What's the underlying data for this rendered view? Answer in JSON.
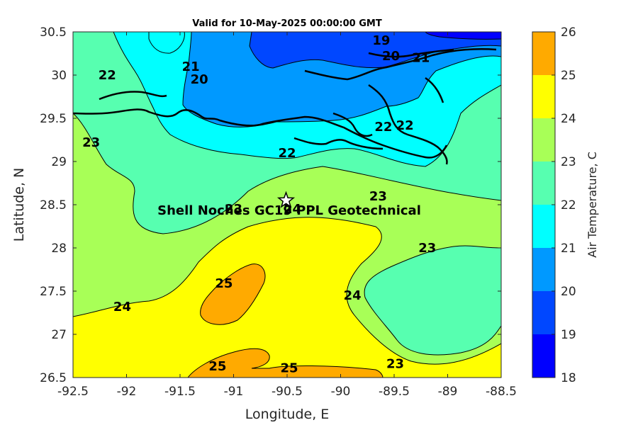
{
  "chart_data": {
    "type": "heatmap",
    "title": "Valid for 10-May-2025 00:00:00 GMT",
    "xlabel": "Longitude, E",
    "ylabel": "Latitude, N",
    "xlim": [
      -92.5,
      -88.5
    ],
    "ylim": [
      26.5,
      30.5
    ],
    "x_ticks": [
      "-92.5",
      "-92",
      "-91.5",
      "-91",
      "-90.5",
      "-90",
      "-89.5",
      "-89",
      "-88.5"
    ],
    "y_ticks": [
      "26.5",
      "27",
      "27.5",
      "28",
      "28.5",
      "29",
      "29.5",
      "30",
      "30.5"
    ],
    "colorbar": {
      "label": "Air Temperature, C",
      "ticks": [
        "18",
        "19",
        "20",
        "21",
        "22",
        "23",
        "24",
        "25",
        "26"
      ],
      "levels": [
        18,
        19,
        20,
        21,
        22,
        23,
        24,
        25,
        26
      ],
      "colors": [
        "#0000ff",
        "#0047ff",
        "#0099ff",
        "#00ffff",
        "#57ffb0",
        "#a8ff57",
        "#ffff00",
        "#ffaa00",
        "#ff5500"
      ]
    },
    "contour_labels": [
      {
        "text": "19",
        "lon": -89.62,
        "lat": 30.4
      },
      {
        "text": "20",
        "lon": -89.53,
        "lat": 30.22
      },
      {
        "text": "21",
        "lon": -89.25,
        "lat": 30.2
      },
      {
        "text": "21",
        "lon": -91.4,
        "lat": 30.1
      },
      {
        "text": "20",
        "lon": -91.32,
        "lat": 29.95
      },
      {
        "text": "22",
        "lon": -92.18,
        "lat": 30.0
      },
      {
        "text": "22",
        "lon": -89.6,
        "lat": 29.4
      },
      {
        "text": "22",
        "lon": -89.4,
        "lat": 29.42
      },
      {
        "text": "22",
        "lon": -90.5,
        "lat": 29.1
      },
      {
        "text": "23",
        "lon": -92.33,
        "lat": 29.22
      },
      {
        "text": "23",
        "lon": -91.0,
        "lat": 28.45
      },
      {
        "text": "23",
        "lon": -89.65,
        "lat": 28.6
      },
      {
        "text": "23",
        "lon": -89.19,
        "lat": 28.0
      },
      {
        "text": "24",
        "lon": -90.45,
        "lat": 28.45
      },
      {
        "text": "24",
        "lon": -89.89,
        "lat": 27.45
      },
      {
        "text": "24",
        "lon": -92.04,
        "lat": 27.32
      },
      {
        "text": "25",
        "lon": -91.09,
        "lat": 27.59
      },
      {
        "text": "25",
        "lon": -91.15,
        "lat": 26.63
      },
      {
        "text": "23",
        "lon": -89.49,
        "lat": 26.66
      },
      {
        "text": "25",
        "lon": -90.48,
        "lat": 26.61
      }
    ],
    "annotation": {
      "text": "Shell Noches  GC19 PPL  Geotechnical",
      "lon": -90.48,
      "lat": 28.4
    },
    "site_marker": {
      "lon": -90.51,
      "lat": 28.55
    }
  }
}
